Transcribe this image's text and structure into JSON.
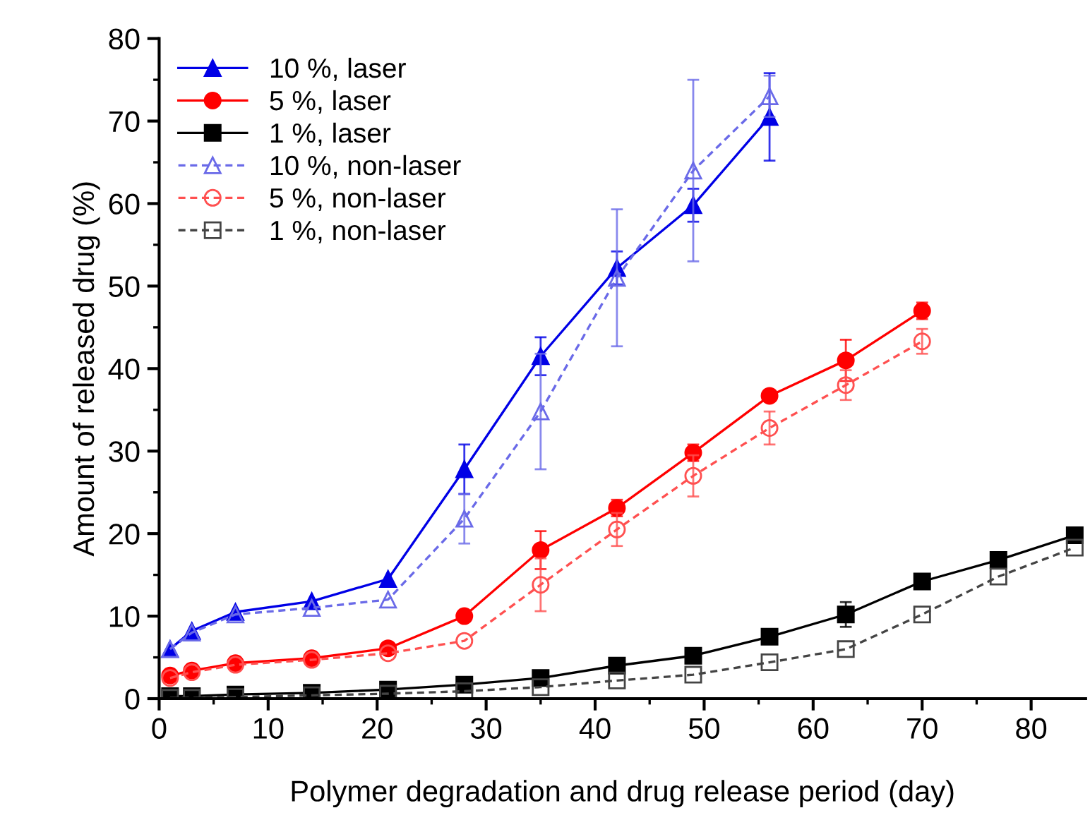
{
  "chart_data": {
    "type": "line",
    "xlabel": "Polymer degradation and drug release period (day)",
    "ylabel": "Amount of released drug (%)",
    "xlim": [
      0,
      85
    ],
    "xticks": [
      0,
      10,
      20,
      30,
      40,
      50,
      60,
      70,
      80
    ],
    "ylim": [
      0,
      80
    ],
    "yticks": [
      0,
      10,
      20,
      30,
      40,
      50,
      60,
      70,
      80
    ],
    "grid": false,
    "legend": "top left",
    "series": [
      {
        "name": "10 %, laser",
        "color": "#0000e6",
        "marker": "triangle",
        "line_style": "solid",
        "x": [
          1,
          3,
          7,
          14,
          21,
          28,
          35,
          42,
          49,
          56
        ],
        "values": [
          6,
          8.2,
          10.5,
          11.8,
          14.5,
          27.8,
          41.5,
          52.2,
          59.8,
          70.5
        ],
        "errors": [
          null,
          null,
          null,
          null,
          null,
          3,
          2.3,
          2,
          2,
          5.3
        ]
      },
      {
        "name": "5 %, laser",
        "color": "#ff0000",
        "marker": "circle",
        "line_style": "solid",
        "x": [
          1,
          3,
          7,
          14,
          21,
          28,
          35,
          42,
          49,
          56,
          63,
          70
        ],
        "values": [
          2.8,
          3.4,
          4.3,
          4.9,
          6.1,
          10,
          18,
          23.1,
          29.8,
          36.7,
          41,
          47
        ],
        "errors": [
          null,
          null,
          null,
          null,
          null,
          null,
          2.3,
          1,
          1,
          null,
          2.5,
          1
        ]
      },
      {
        "name": "1 %, laser",
        "color": "#000000",
        "marker": "square",
        "line_style": "solid",
        "x": [
          1,
          3,
          7,
          14,
          21,
          28,
          35,
          42,
          49,
          56,
          63,
          70,
          77,
          84
        ],
        "values": [
          0.3,
          0.3,
          0.5,
          0.7,
          1.1,
          1.7,
          2.5,
          4,
          5.2,
          7.5,
          10.2,
          14.2,
          16.8,
          19.8
        ],
        "errors": [
          null,
          null,
          null,
          null,
          null,
          null,
          null,
          null,
          null,
          null,
          1.5,
          null,
          null,
          null
        ]
      },
      {
        "name": "10 %, non-laser",
        "color": "#6a6ae8",
        "marker": "triangle",
        "line_style": "dashed",
        "x": [
          1,
          3,
          7,
          14,
          21,
          28,
          35,
          42,
          49,
          56
        ],
        "values": [
          6,
          8,
          10.2,
          11,
          12,
          21.8,
          34.8,
          51,
          64,
          73
        ],
        "errors": [
          null,
          null,
          null,
          null,
          null,
          3,
          7,
          8.3,
          11,
          2.5
        ]
      },
      {
        "name": "5 %, non-laser",
        "color": "#ff5050",
        "marker": "circle",
        "line_style": "dashed",
        "x": [
          1,
          3,
          7,
          14,
          21,
          28,
          35,
          42,
          49,
          56,
          63,
          70
        ],
        "values": [
          2.5,
          3.2,
          4.1,
          4.7,
          5.5,
          7,
          13.8,
          20.5,
          27,
          32.8,
          38,
          43.3
        ],
        "errors": [
          null,
          null,
          null,
          null,
          null,
          null,
          3.2,
          2,
          2.5,
          2,
          1.8,
          1.5
        ]
      },
      {
        "name": "1 %, non-laser",
        "color": "#444444",
        "marker": "square",
        "line_style": "dashed",
        "x": [
          1,
          3,
          7,
          14,
          21,
          28,
          35,
          42,
          49,
          56,
          63,
          70,
          77,
          84
        ],
        "values": [
          0.1,
          0.1,
          0.2,
          0.4,
          0.6,
          0.9,
          1.4,
          2.2,
          2.9,
          4.4,
          6,
          10.2,
          14.8,
          18.3
        ]
      }
    ]
  }
}
